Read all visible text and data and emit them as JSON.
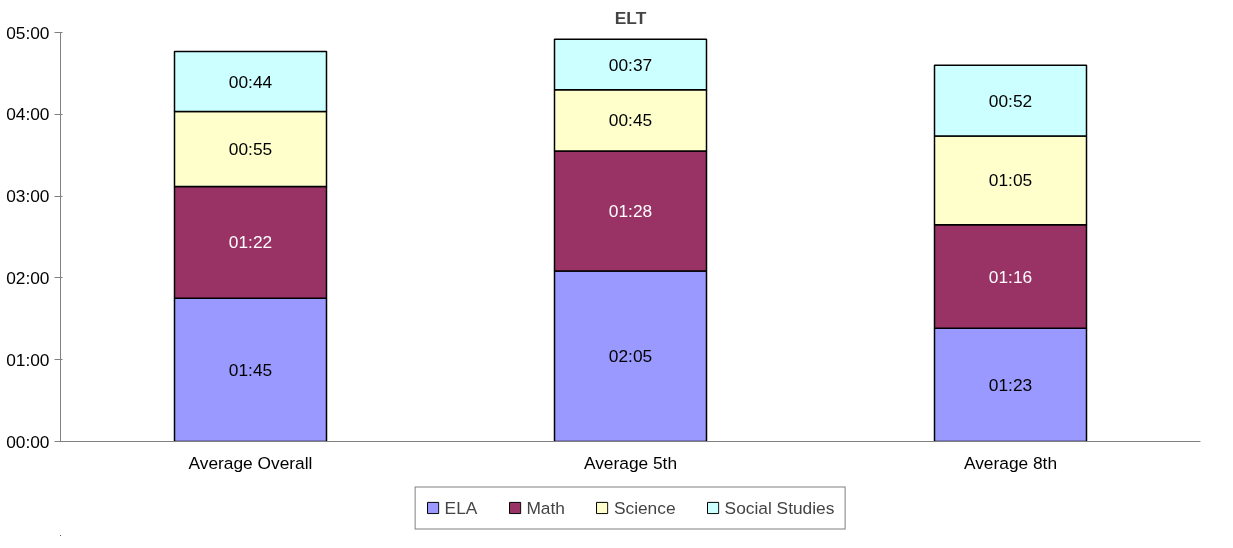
{
  "chart_data": {
    "type": "bar",
    "title": "ELT",
    "stacked": true,
    "categories": [
      "Average Overall",
      "Average 5th",
      "Average 8th"
    ],
    "series": [
      {
        "name": "ELA",
        "color": "#9999ff",
        "values": [
          105,
          125,
          83
        ],
        "value_labels": [
          "01:45",
          "02:05",
          "01:23"
        ]
      },
      {
        "name": "Math",
        "color": "#993366",
        "values": [
          82,
          88,
          76
        ],
        "value_labels": [
          "01:22",
          "01:28",
          "01:16"
        ]
      },
      {
        "name": "Science",
        "color": "#ffffcc",
        "values": [
          55,
          45,
          65
        ],
        "value_labels": [
          "00:55",
          "00:45",
          "01:05"
        ]
      },
      {
        "name": "Social Studies",
        "color": "#ccffff",
        "values": [
          44,
          37,
          52
        ],
        "value_labels": [
          "00:44",
          "00:37",
          "00:52"
        ]
      }
    ],
    "ylim": [
      0,
      300
    ],
    "yticks": [
      {
        "value": 0,
        "label": "00:00"
      },
      {
        "value": 60,
        "label": "01:00"
      },
      {
        "value": 120,
        "label": "02:00"
      },
      {
        "value": 180,
        "label": "03:00"
      },
      {
        "value": 240,
        "label": "04:00"
      },
      {
        "value": 300,
        "label": "05:00"
      }
    ],
    "grid": false,
    "legend": "bottom"
  }
}
